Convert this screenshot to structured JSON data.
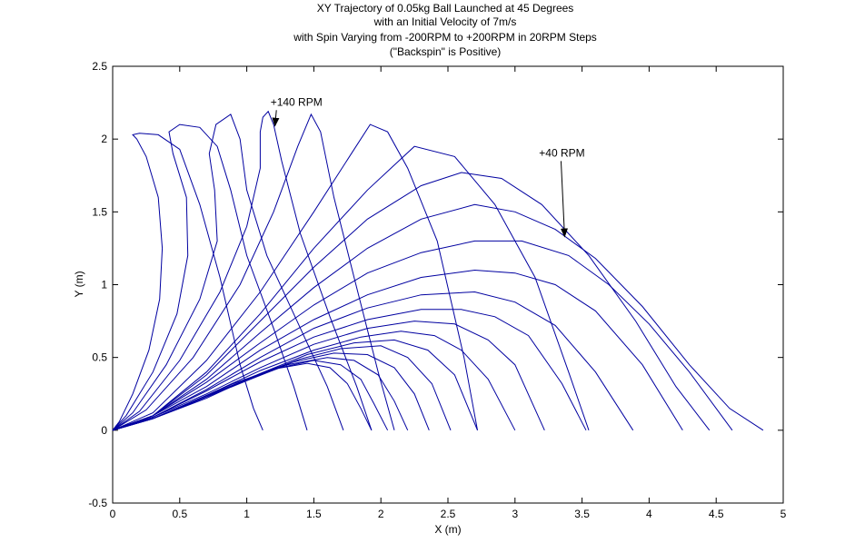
{
  "chart_data": {
    "type": "line",
    "title_lines": [
      "XY Trajectory of 0.05kg Ball Launched at 45 Degrees",
      "with an Initial Velocity of 7m/s",
      "with Spin Varying from -200RPM to +200RPM in 20RPM Steps",
      "(\"Backspin\" is Positive)"
    ],
    "xlabel": "X (m)",
    "ylabel": "Y (m)",
    "xlim": [
      0,
      5
    ],
    "ylim": [
      -0.5,
      2.5
    ],
    "xticks": [
      0,
      0.5,
      1,
      1.5,
      2,
      2.5,
      3,
      3.5,
      4,
      4.5,
      5
    ],
    "xtick_labels": [
      "0",
      "0.5",
      "1",
      "1.5",
      "2",
      "2.5",
      "3",
      "3.5",
      "4",
      "4.5",
      "5"
    ],
    "yticks": [
      -0.5,
      0,
      0.5,
      1,
      1.5,
      2,
      2.5
    ],
    "ytick_labels": [
      "-0.5",
      "0",
      "0.5",
      "1",
      "1.5",
      "2",
      "2.5"
    ],
    "grid": false,
    "line_color": "#0000a0",
    "annotations": [
      {
        "text": "+140 RPM",
        "x": 1.37,
        "y": 2.23,
        "arrow_to": [
          1.21,
          2.09
        ]
      },
      {
        "text": "+40 RPM",
        "x": 3.35,
        "y": 1.88,
        "arrow_to": [
          3.37,
          1.33
        ]
      }
    ],
    "series": [
      {
        "rpm": 200,
        "x": [
          0,
          0.05,
          0.15,
          0.27,
          0.35,
          0.37,
          0.34,
          0.25,
          0.18,
          0.15,
          0.2,
          0.34,
          0.5,
          0.65,
          0.8,
          0.95,
          1.05,
          1.12
        ],
        "y": [
          0,
          0.06,
          0.25,
          0.55,
          0.9,
          1.25,
          1.6,
          1.88,
          2.0,
          2.03,
          2.04,
          2.03,
          1.93,
          1.55,
          1.05,
          0.45,
          0.15,
          0
        ]
      },
      {
        "rpm": 180,
        "x": [
          0,
          0.1,
          0.3,
          0.48,
          0.56,
          0.55,
          0.45,
          0.42,
          0.5,
          0.65,
          0.78,
          0.88,
          1.0,
          1.2,
          1.35,
          1.45
        ],
        "y": [
          0,
          0.1,
          0.4,
          0.8,
          1.2,
          1.6,
          1.9,
          2.05,
          2.1,
          2.08,
          1.95,
          1.65,
          1.2,
          0.7,
          0.3,
          0
        ]
      },
      {
        "rpm": 160,
        "x": [
          0,
          0.15,
          0.4,
          0.65,
          0.78,
          0.76,
          0.72,
          0.77,
          0.88,
          0.95,
          1.0,
          1.15,
          1.4,
          1.6,
          1.72
        ],
        "y": [
          0,
          0.12,
          0.45,
          0.9,
          1.3,
          1.65,
          1.9,
          2.1,
          2.17,
          2.0,
          1.65,
          1.2,
          0.7,
          0.3,
          0
        ]
      },
      {
        "rpm": 140,
        "x": [
          0,
          0.2,
          0.5,
          0.8,
          1.0,
          1.1,
          1.1,
          1.12,
          1.16,
          1.2,
          1.26,
          1.4,
          1.62,
          1.82,
          1.93
        ],
        "y": [
          0,
          0.13,
          0.48,
          0.95,
          1.4,
          1.8,
          2.05,
          2.15,
          2.19,
          2.1,
          1.85,
          1.35,
          0.78,
          0.3,
          0
        ]
      },
      {
        "rpm": 120,
        "x": [
          0,
          0.25,
          0.6,
          0.95,
          1.2,
          1.38,
          1.48,
          1.55,
          1.65,
          1.8,
          1.98,
          2.1
        ],
        "y": [
          0,
          0.14,
          0.5,
          1.0,
          1.5,
          1.95,
          2.17,
          2.05,
          1.6,
          1.05,
          0.4,
          0
        ]
      },
      {
        "rpm": 100,
        "x": [
          0,
          0.3,
          0.7,
          1.1,
          1.5,
          1.78,
          1.92,
          2.05,
          2.2,
          2.42,
          2.62,
          2.72
        ],
        "y": [
          0,
          0.12,
          0.48,
          0.95,
          1.5,
          1.9,
          2.1,
          2.05,
          1.8,
          1.3,
          0.5,
          0
        ]
      },
      {
        "rpm": 80,
        "x": [
          0,
          0.3,
          0.7,
          1.1,
          1.5,
          1.9,
          2.25,
          2.55,
          2.85,
          3.15,
          3.4,
          3.55
        ],
        "y": [
          0,
          0.1,
          0.4,
          0.8,
          1.25,
          1.65,
          1.95,
          1.88,
          1.55,
          1.05,
          0.4,
          0
        ]
      },
      {
        "rpm": 60,
        "x": [
          0,
          0.3,
          0.7,
          1.1,
          1.5,
          1.9,
          2.3,
          2.6,
          2.9,
          3.2,
          3.55,
          3.9,
          4.2,
          4.45
        ],
        "y": [
          0,
          0.1,
          0.38,
          0.75,
          1.12,
          1.45,
          1.68,
          1.77,
          1.73,
          1.55,
          1.2,
          0.75,
          0.3,
          0
        ]
      },
      {
        "rpm": 40,
        "x": [
          0,
          0.3,
          0.7,
          1.1,
          1.5,
          1.9,
          2.3,
          2.7,
          3.0,
          3.3,
          3.6,
          3.95,
          4.3,
          4.6,
          4.85
        ],
        "y": [
          0,
          0.1,
          0.35,
          0.67,
          0.98,
          1.25,
          1.45,
          1.55,
          1.5,
          1.38,
          1.18,
          0.85,
          0.45,
          0.15,
          0
        ]
      },
      {
        "rpm": 20,
        "x": [
          0,
          0.3,
          0.7,
          1.1,
          1.5,
          1.9,
          2.3,
          2.7,
          3.05,
          3.4,
          3.7,
          4.0,
          4.3,
          4.62
        ],
        "y": [
          0,
          0.1,
          0.33,
          0.6,
          0.86,
          1.08,
          1.22,
          1.3,
          1.3,
          1.2,
          1.0,
          0.73,
          0.4,
          0
        ]
      },
      {
        "rpm": 0,
        "x": [
          0,
          0.3,
          0.7,
          1.1,
          1.5,
          1.9,
          2.3,
          2.7,
          3.0,
          3.3,
          3.6,
          3.95,
          4.25
        ],
        "y": [
          0,
          0.1,
          0.3,
          0.55,
          0.76,
          0.93,
          1.05,
          1.1,
          1.08,
          1.0,
          0.82,
          0.45,
          0
        ]
      },
      {
        "rpm": -20,
        "x": [
          0,
          0.3,
          0.7,
          1.1,
          1.5,
          1.9,
          2.3,
          2.7,
          3.0,
          3.3,
          3.6,
          3.88
        ],
        "y": [
          0,
          0.09,
          0.28,
          0.5,
          0.7,
          0.84,
          0.93,
          0.95,
          0.88,
          0.72,
          0.4,
          0
        ]
      },
      {
        "rpm": -40,
        "x": [
          0,
          0.3,
          0.7,
          1.1,
          1.5,
          1.9,
          2.3,
          2.6,
          2.85,
          3.1,
          3.35,
          3.53
        ],
        "y": [
          0,
          0.09,
          0.27,
          0.47,
          0.64,
          0.76,
          0.83,
          0.83,
          0.78,
          0.65,
          0.32,
          0
        ]
      },
      {
        "rpm": -60,
        "x": [
          0,
          0.3,
          0.7,
          1.1,
          1.5,
          1.9,
          2.25,
          2.55,
          2.8,
          3.0,
          3.22
        ],
        "y": [
          0,
          0.09,
          0.25,
          0.43,
          0.59,
          0.7,
          0.75,
          0.73,
          0.62,
          0.45,
          0
        ]
      },
      {
        "rpm": -80,
        "x": [
          0,
          0.3,
          0.7,
          1.1,
          1.5,
          1.85,
          2.15,
          2.4,
          2.6,
          2.8,
          3.0
        ],
        "y": [
          0,
          0.08,
          0.24,
          0.41,
          0.55,
          0.64,
          0.68,
          0.65,
          0.55,
          0.35,
          0
        ]
      },
      {
        "rpm": -100,
        "x": [
          0,
          0.3,
          0.7,
          1.1,
          1.45,
          1.8,
          2.1,
          2.35,
          2.55,
          2.72
        ],
        "y": [
          0,
          0.08,
          0.23,
          0.39,
          0.52,
          0.6,
          0.62,
          0.55,
          0.38,
          0
        ]
      },
      {
        "rpm": -120,
        "x": [
          0,
          0.3,
          0.7,
          1.05,
          1.4,
          1.7,
          2.0,
          2.2,
          2.38,
          2.52
        ],
        "y": [
          0,
          0.08,
          0.22,
          0.37,
          0.49,
          0.56,
          0.58,
          0.5,
          0.32,
          0
        ]
      },
      {
        "rpm": -140,
        "x": [
          0,
          0.3,
          0.65,
          1.0,
          1.35,
          1.65,
          1.9,
          2.1,
          2.25,
          2.36
        ],
        "y": [
          0,
          0.08,
          0.21,
          0.35,
          0.47,
          0.53,
          0.52,
          0.43,
          0.25,
          0
        ]
      },
      {
        "rpm": -160,
        "x": [
          0,
          0.3,
          0.65,
          1.0,
          1.3,
          1.6,
          1.8,
          1.98,
          2.1,
          2.2
        ],
        "y": [
          0,
          0.08,
          0.21,
          0.34,
          0.45,
          0.5,
          0.48,
          0.38,
          0.2,
          0
        ]
      },
      {
        "rpm": -180,
        "x": [
          0,
          0.3,
          0.6,
          0.95,
          1.25,
          1.5,
          1.7,
          1.85,
          1.95,
          2.05
        ],
        "y": [
          0,
          0.08,
          0.2,
          0.33,
          0.43,
          0.48,
          0.45,
          0.35,
          0.18,
          0
        ]
      },
      {
        "rpm": -200,
        "x": [
          0,
          0.3,
          0.6,
          0.9,
          1.2,
          1.45,
          1.62,
          1.75,
          1.85,
          1.93
        ],
        "y": [
          0,
          0.08,
          0.2,
          0.32,
          0.42,
          0.46,
          0.43,
          0.32,
          0.15,
          0
        ]
      }
    ]
  }
}
